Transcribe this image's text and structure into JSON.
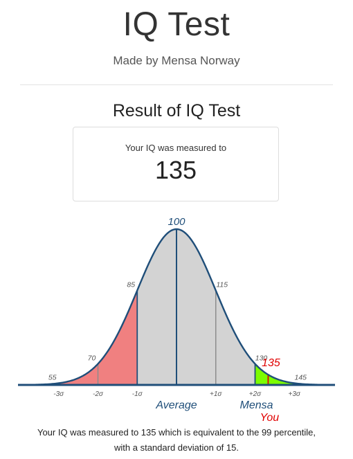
{
  "header": {
    "title": "IQ Test",
    "subtitle": "Made by Mensa Norway"
  },
  "result": {
    "section_title": "Result of IQ Test",
    "label": "Your IQ was measured to",
    "value": "135"
  },
  "chart_data": {
    "type": "area",
    "title": "",
    "distribution": {
      "mean": 100,
      "sd": 15
    },
    "xlim": [
      40,
      160
    ],
    "iq_labels": [
      {
        "value": 55,
        "text": "55"
      },
      {
        "value": 70,
        "text": "70"
      },
      {
        "value": 85,
        "text": "85"
      },
      {
        "value": 100,
        "text": "100"
      },
      {
        "value": 115,
        "text": "115"
      },
      {
        "value": 130,
        "text": "130"
      },
      {
        "value": 145,
        "text": "145"
      }
    ],
    "sigma_ticks": [
      {
        "value": 55,
        "text": "-3σ"
      },
      {
        "value": 70,
        "text": "-2σ"
      },
      {
        "value": 85,
        "text": "-1σ"
      },
      {
        "value": 115,
        "text": "+1σ"
      },
      {
        "value": 130,
        "text": "+2σ"
      },
      {
        "value": 145,
        "text": "+3σ"
      }
    ],
    "regions": [
      {
        "from": 40,
        "to": 85,
        "color": "#f08080"
      },
      {
        "from": 85,
        "to": 130,
        "color": "#d3d3d3"
      },
      {
        "from": 130,
        "to": 160,
        "color": "#7cfc00"
      }
    ],
    "markers": {
      "average": 100,
      "mensa": 130,
      "you": 135
    },
    "annotations": {
      "average": "Average",
      "mensa": "Mensa",
      "you": "You",
      "you_value": "135"
    },
    "colors": {
      "curve": "#1f4e79",
      "baseline": "#1f4e79",
      "label_blue": "#1f4e79",
      "you": "#e00000",
      "grid": "#8c8c8c",
      "tick_text": "#555555"
    }
  },
  "footer": {
    "line1": "Your IQ was measured to 135 which is equivalent to the 99 percentile,",
    "line2": "with a standard deviation of 15."
  }
}
